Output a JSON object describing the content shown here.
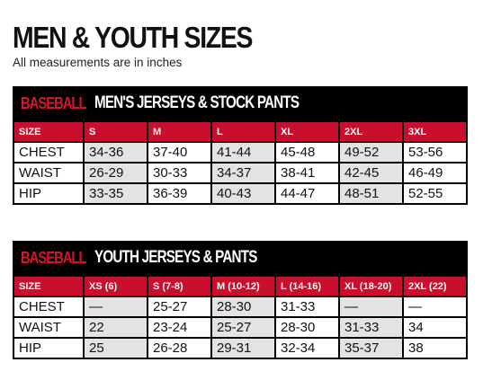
{
  "title": "MEN & YOUTH SIZES",
  "subtitle": "All measurements are in inches",
  "tables": [
    {
      "brand": "BASEBALL",
      "title": "MEN'S JERSEYS & STOCK PANTS",
      "headers": [
        "SIZE",
        "S",
        "M",
        "L",
        "XL",
        "2XL",
        "3XL"
      ],
      "rows": [
        [
          "CHEST",
          "34-36",
          "37-40",
          "41-44",
          "45-48",
          "49-52",
          "53-56"
        ],
        [
          "WAIST",
          "26-29",
          "30-33",
          "34-37",
          "38-41",
          "42-45",
          "46-49"
        ],
        [
          "HIP",
          "33-35",
          "36-39",
          "40-43",
          "44-47",
          "48-51",
          "52-55"
        ]
      ]
    },
    {
      "brand": "BASEBALL",
      "title": "YOUTH JERSEYS & PANTS",
      "headers": [
        "SIZE",
        "XS (6)",
        "S (7-8)",
        "M (10-12)",
        "L (14-16)",
        "XL (18-20)",
        "2XL (22)"
      ],
      "rows": [
        [
          "CHEST",
          "—",
          "25-27",
          "28-30",
          "31-33",
          "—",
          "—"
        ],
        [
          "WAIST",
          "22",
          "23-24",
          "25-27",
          "28-30",
          "31-33",
          "34"
        ],
        [
          "HIP",
          "25",
          "26-28",
          "29-31",
          "32-34",
          "35-37",
          "38"
        ]
      ]
    }
  ],
  "colors": {
    "accent_red": "#c8102e",
    "brand_red": "#d8162b",
    "header_black": "#000000",
    "shaded_cell": "#e3e3e3"
  }
}
